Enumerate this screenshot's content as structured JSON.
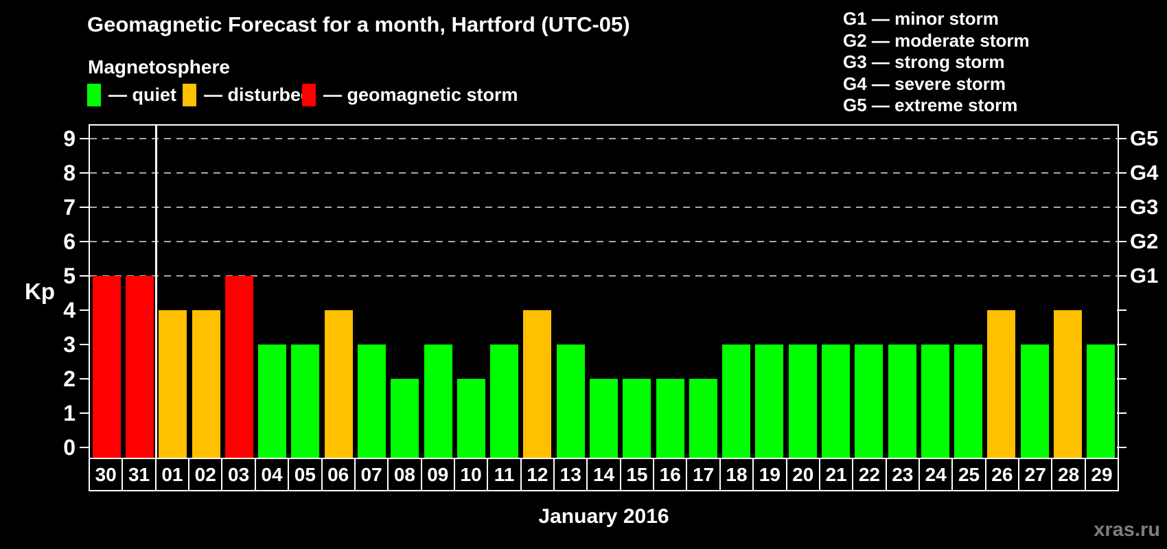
{
  "page": {
    "title": "Geomagnetic Forecast for a month, Hartford (UTC-05)",
    "subtitle": "Magnetosphere",
    "watermark": "xras.ru"
  },
  "legend": {
    "items": [
      {
        "key": "quiet",
        "label": "— quiet",
        "color": "#00FF00"
      },
      {
        "key": "disturbed",
        "label": "— disturbed",
        "color": "#FFC000"
      },
      {
        "key": "storm",
        "label": "— geomagnetic storm",
        "color": "#FF0000"
      }
    ]
  },
  "g_scale_legend": {
    "lines": [
      "G1 — minor storm",
      "G2 — moderate storm",
      "G3 — strong storm",
      "G4 — severe storm",
      "G5 — extreme storm"
    ]
  },
  "chart_data": {
    "type": "bar",
    "title": "Geomagnetic Forecast for a month, Hartford (UTC-05)",
    "xlabel": "January 2016",
    "ylabel": "Kp",
    "ylim": [
      0,
      9.4
    ],
    "yticks": [
      0,
      1,
      2,
      3,
      4,
      5,
      6,
      7,
      8,
      9
    ],
    "gridlines_at_kp": [
      5,
      6,
      7,
      8,
      9
    ],
    "right_axis": [
      {
        "label": "G1",
        "kp": 5
      },
      {
        "label": "G2",
        "kp": 6
      },
      {
        "label": "G3",
        "kp": 7
      },
      {
        "label": "G4",
        "kp": 8
      },
      {
        "label": "G5",
        "kp": 9
      }
    ],
    "month_separator_after_index": 1,
    "categories": [
      "30",
      "31",
      "01",
      "02",
      "03",
      "04",
      "05",
      "06",
      "07",
      "08",
      "09",
      "10",
      "11",
      "12",
      "13",
      "14",
      "15",
      "16",
      "17",
      "18",
      "19",
      "20",
      "21",
      "22",
      "23",
      "24",
      "25",
      "26",
      "27",
      "28",
      "29"
    ],
    "values": [
      5,
      5,
      4,
      4,
      5,
      3,
      3,
      4,
      3,
      2,
      3,
      2,
      3,
      4,
      3,
      2,
      2,
      2,
      2,
      3,
      3,
      3,
      3,
      3,
      3,
      3,
      3,
      4,
      3,
      4,
      3
    ],
    "statuses": [
      "storm",
      "storm",
      "disturbed",
      "disturbed",
      "storm",
      "quiet",
      "quiet",
      "disturbed",
      "quiet",
      "quiet",
      "quiet",
      "quiet",
      "quiet",
      "disturbed",
      "quiet",
      "quiet",
      "quiet",
      "quiet",
      "quiet",
      "quiet",
      "quiet",
      "quiet",
      "quiet",
      "quiet",
      "quiet",
      "quiet",
      "quiet",
      "disturbed",
      "quiet",
      "disturbed",
      "quiet"
    ],
    "status_colors": {
      "quiet": "#00FF00",
      "disturbed": "#FFC000",
      "storm": "#FF0000"
    },
    "grid_color": "#AAAAAA"
  }
}
